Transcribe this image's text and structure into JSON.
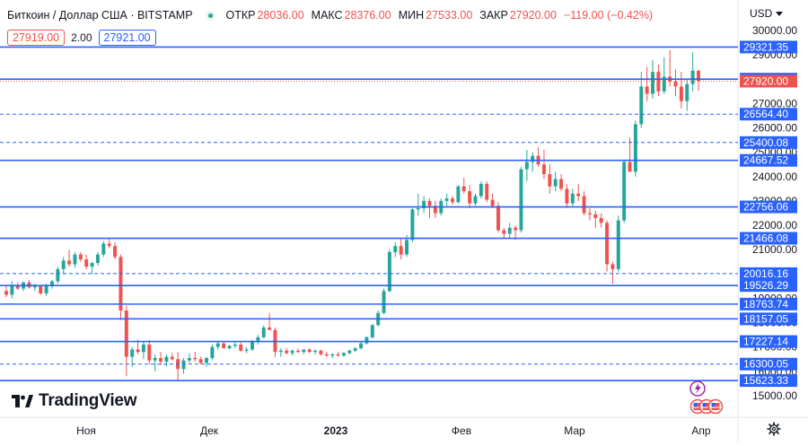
{
  "header": {
    "symbol": "Биткоин / Доллар США · BITSTAMP",
    "ohlc": [
      {
        "label": "ОТКР",
        "value": "28036.00"
      },
      {
        "label": "МАКС",
        "value": "28376.00"
      },
      {
        "label": "МИН",
        "value": "27533.00"
      },
      {
        "label": "ЗАКР",
        "value": "27920.00"
      }
    ],
    "change": "−119.00 (−0.42%)"
  },
  "quote": {
    "sell": "27919.00",
    "spread": "2.00",
    "buy": "27921.00"
  },
  "currency": "USD",
  "branding": "TradingView",
  "colors": {
    "up": "#26a69a",
    "down": "#ef5350",
    "level": "#2962ff",
    "price_tag": "#ef5350",
    "level_tag": "#2962ff"
  },
  "chart_data": {
    "type": "candlestick",
    "instrument": "BTC/USD",
    "ylim": [
      15000,
      30000
    ],
    "y_ticks": [
      15000,
      16000,
      17000,
      18000,
      19000,
      20000,
      21000,
      22000,
      23000,
      24000,
      25000,
      26000,
      27000,
      28000,
      29000,
      30000
    ],
    "x_ticks": [
      {
        "label": "Ноя",
        "bold": false
      },
      {
        "label": "Дек",
        "bold": false
      },
      {
        "label": "2023",
        "bold": true
      },
      {
        "label": "Фев",
        "bold": false
      },
      {
        "label": "Мар",
        "bold": false
      },
      {
        "label": "Апр",
        "bold": false
      }
    ],
    "last_price": 27920.0,
    "levels": [
      {
        "value": 29321.35,
        "style": "solid"
      },
      {
        "value": 28002.86,
        "style": "solid"
      },
      {
        "value": 26564.4,
        "style": "dashed"
      },
      {
        "value": 25400.08,
        "style": "dashed"
      },
      {
        "value": 24667.52,
        "style": "solid"
      },
      {
        "value": 22756.06,
        "style": "solid"
      },
      {
        "value": 21466.08,
        "style": "solid"
      },
      {
        "value": 20016.16,
        "style": "dashed"
      },
      {
        "value": 19526.29,
        "style": "solid"
      },
      {
        "value": 18763.74,
        "style": "solid"
      },
      {
        "value": 18157.05,
        "style": "solid"
      },
      {
        "value": 17227.14,
        "style": "solid"
      },
      {
        "value": 16300.05,
        "style": "dashed"
      },
      {
        "value": 15623.33,
        "style": "solid"
      }
    ],
    "candles": [
      [
        19300,
        19500,
        19050,
        19150
      ],
      [
        19150,
        19700,
        19000,
        19550
      ],
      [
        19550,
        19650,
        19350,
        19400
      ],
      [
        19400,
        19700,
        19300,
        19650
      ],
      [
        19650,
        19750,
        19400,
        19450
      ],
      [
        19450,
        19600,
        19300,
        19500
      ],
      [
        19500,
        19550,
        19150,
        19200
      ],
      [
        19200,
        19600,
        19100,
        19550
      ],
      [
        19550,
        19750,
        19400,
        19700
      ],
      [
        19700,
        20300,
        19600,
        20200
      ],
      [
        20200,
        20700,
        20000,
        20550
      ],
      [
        20550,
        21000,
        20300,
        20400
      ],
      [
        20400,
        20900,
        20250,
        20800
      ],
      [
        20800,
        20900,
        20500,
        20600
      ],
      [
        20600,
        20800,
        20200,
        20300
      ],
      [
        20300,
        20500,
        20000,
        20450
      ],
      [
        20450,
        20900,
        20350,
        20800
      ],
      [
        20800,
        21350,
        20700,
        21250
      ],
      [
        21250,
        21500,
        21050,
        21150
      ],
      [
        21150,
        21300,
        20600,
        20700
      ],
      [
        20700,
        20800,
        18100,
        18500
      ],
      [
        18500,
        18700,
        15800,
        16600
      ],
      [
        16600,
        17000,
        16200,
        16900
      ],
      [
        16900,
        17300,
        16700,
        16800
      ],
      [
        16800,
        17200,
        16500,
        17100
      ],
      [
        17100,
        17300,
        16300,
        16450
      ],
      [
        16450,
        16700,
        16000,
        16550
      ],
      [
        16550,
        16800,
        16250,
        16400
      ],
      [
        16400,
        16700,
        16200,
        16600
      ],
      [
        16600,
        16750,
        16450,
        16500
      ],
      [
        16500,
        16800,
        15600,
        16100
      ],
      [
        16100,
        16550,
        15900,
        16450
      ],
      [
        16450,
        16750,
        16350,
        16550
      ],
      [
        16550,
        16800,
        16400,
        16500
      ],
      [
        16500,
        16600,
        16300,
        16350
      ],
      [
        16350,
        16600,
        16200,
        16550
      ],
      [
        16550,
        17100,
        16450,
        17000
      ],
      [
        17000,
        17200,
        16900,
        17150
      ],
      [
        17150,
        17250,
        16950,
        16950
      ],
      [
        16950,
        17100,
        16900,
        17050
      ],
      [
        17050,
        17250,
        16950,
        17100
      ],
      [
        17100,
        17200,
        16800,
        16850
      ],
      [
        16850,
        17000,
        16750,
        16900
      ],
      [
        16900,
        17300,
        16850,
        17250
      ],
      [
        17250,
        17500,
        17100,
        17400
      ],
      [
        17400,
        17900,
        17350,
        17800
      ],
      [
        17800,
        18400,
        17700,
        17700
      ],
      [
        17700,
        17800,
        16600,
        16800
      ],
      [
        16800,
        16950,
        16600,
        16850
      ],
      [
        16850,
        16950,
        16700,
        16750
      ],
      [
        16750,
        16900,
        16650,
        16850
      ],
      [
        16850,
        16950,
        16750,
        16800
      ],
      [
        16800,
        16900,
        16700,
        16900
      ],
      [
        16900,
        16950,
        16750,
        16800
      ],
      [
        16800,
        16900,
        16700,
        16850
      ],
      [
        16850,
        16900,
        16650,
        16700
      ],
      [
        16700,
        16800,
        16600,
        16650
      ],
      [
        16650,
        16750,
        16550,
        16700
      ],
      [
        16700,
        16800,
        16600,
        16650
      ],
      [
        16650,
        16800,
        16600,
        16750
      ],
      [
        16750,
        16900,
        16700,
        16850
      ],
      [
        16850,
        17000,
        16800,
        16950
      ],
      [
        16950,
        17200,
        16900,
        17150
      ],
      [
        17150,
        17450,
        17100,
        17400
      ],
      [
        17400,
        17950,
        17350,
        17900
      ],
      [
        17900,
        18500,
        17850,
        18400
      ],
      [
        18400,
        19400,
        18350,
        19300
      ],
      [
        19300,
        21000,
        19250,
        20900
      ],
      [
        20900,
        21300,
        20700,
        21150
      ],
      [
        21150,
        21450,
        20600,
        20800
      ],
      [
        20800,
        21600,
        20700,
        21400
      ],
      [
        21400,
        22700,
        21300,
        22650
      ],
      [
        22650,
        23300,
        22400,
        22700
      ],
      [
        22700,
        23200,
        22500,
        23000
      ],
      [
        23000,
        23100,
        22300,
        22800
      ],
      [
        22800,
        23000,
        22300,
        22500
      ],
      [
        22500,
        23100,
        22400,
        23000
      ],
      [
        23000,
        23300,
        22800,
        23100
      ],
      [
        23100,
        23200,
        22850,
        22950
      ],
      [
        22950,
        23650,
        22900,
        23600
      ],
      [
        23600,
        23950,
        23300,
        23400
      ],
      [
        23400,
        23650,
        22700,
        22900
      ],
      [
        22900,
        23300,
        22800,
        23200
      ],
      [
        23200,
        23800,
        23100,
        23700
      ],
      [
        23700,
        23800,
        22950,
        23050
      ],
      [
        23050,
        23300,
        22700,
        22800
      ],
      [
        22800,
        22950,
        21700,
        21800
      ],
      [
        21800,
        21900,
        21450,
        21650
      ],
      [
        21650,
        22100,
        21500,
        21900
      ],
      [
        21900,
        22000,
        21400,
        21800
      ],
      [
        21800,
        24400,
        21700,
        24300
      ],
      [
        24300,
        25100,
        23800,
        24600
      ],
      [
        24600,
        25000,
        24200,
        24850
      ],
      [
        24850,
        25200,
        24400,
        24500
      ],
      [
        24500,
        25100,
        23900,
        24100
      ],
      [
        24100,
        24500,
        23300,
        23600
      ],
      [
        23600,
        24200,
        23400,
        23900
      ],
      [
        23900,
        24100,
        23400,
        23500
      ],
      [
        23500,
        23700,
        22700,
        22900
      ],
      [
        22900,
        23500,
        22800,
        23300
      ],
      [
        23300,
        23700,
        23000,
        23200
      ],
      [
        23200,
        23400,
        22400,
        22500
      ],
      [
        22500,
        22700,
        22200,
        22450
      ],
      [
        22450,
        22600,
        21900,
        22300
      ],
      [
        22300,
        22500,
        21900,
        22100
      ],
      [
        22100,
        22200,
        20100,
        20400
      ],
      [
        20400,
        20500,
        19600,
        20200
      ],
      [
        20200,
        22400,
        20100,
        22200
      ],
      [
        22200,
        24700,
        22100,
        24600
      ],
      [
        24600,
        25600,
        24300,
        24200
      ],
      [
        24200,
        26300,
        24000,
        26150
      ],
      [
        26150,
        28300,
        26000,
        27700
      ],
      [
        27700,
        28500,
        27100,
        27400
      ],
      [
        27400,
        28800,
        27200,
        28300
      ],
      [
        28300,
        28600,
        27300,
        27500
      ],
      [
        27500,
        28900,
        27400,
        28100
      ],
      [
        28100,
        29200,
        27700,
        27900
      ],
      [
        27900,
        28400,
        27300,
        27700
      ],
      [
        27700,
        28300,
        26800,
        27100
      ],
      [
        27100,
        28000,
        26700,
        27800
      ],
      [
        27800,
        29100,
        27500,
        28350
      ],
      [
        28350,
        28376,
        27533,
        27920
      ]
    ],
    "markers": [
      {
        "type": "flash"
      },
      {
        "type": "flag-group"
      }
    ]
  }
}
